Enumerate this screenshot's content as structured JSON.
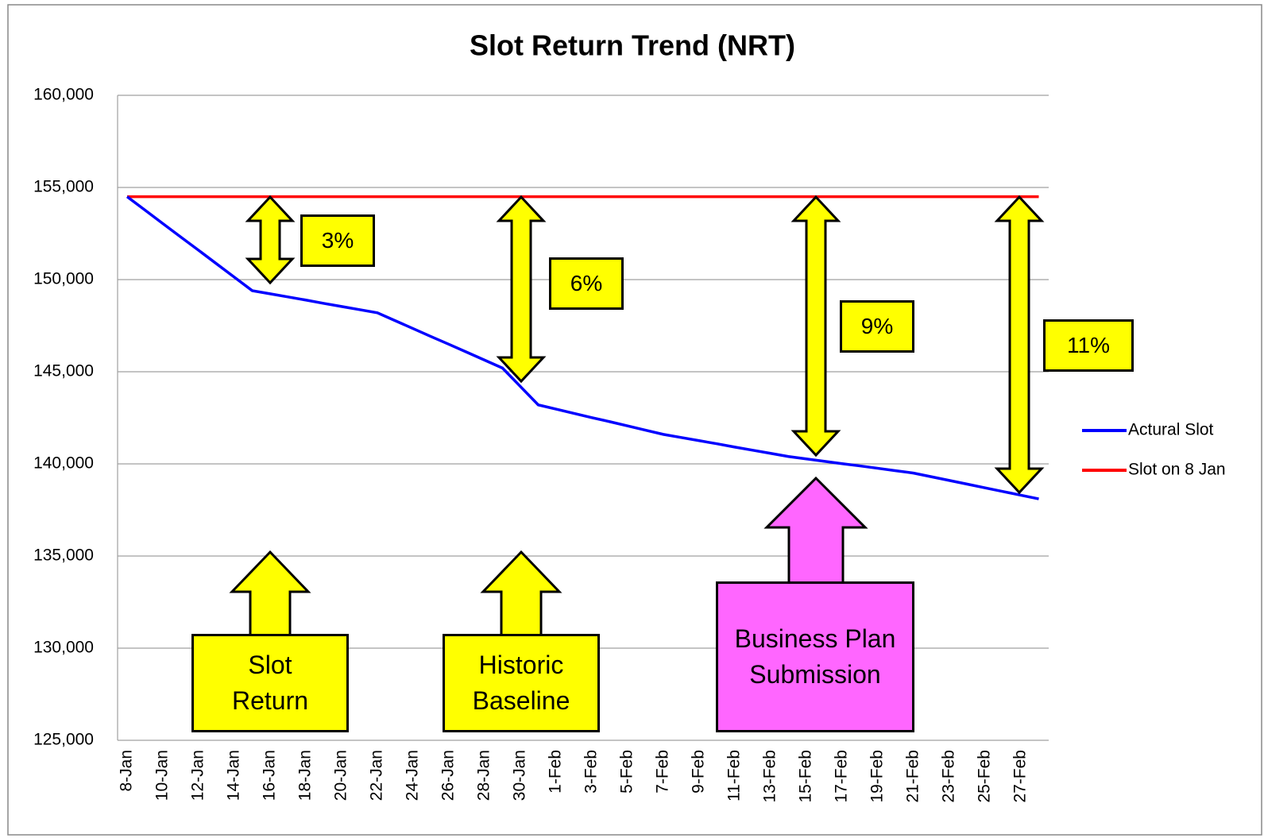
{
  "chart_data": {
    "type": "line",
    "title": "Slot Return Trend (NRT)",
    "categories": [
      "8-Jan",
      null,
      "10-Jan",
      null,
      "12-Jan",
      null,
      "14-Jan",
      null,
      "16-Jan",
      null,
      "18-Jan",
      null,
      "20-Jan",
      null,
      "22-Jan",
      null,
      "24-Jan",
      null,
      "26-Jan",
      null,
      "28-Jan",
      null,
      "30-Jan",
      null,
      "1-Feb",
      null,
      "3-Feb",
      null,
      "5-Feb",
      null,
      "7-Feb",
      null,
      "9-Feb",
      null,
      "11-Feb",
      null,
      "13-Feb",
      null,
      "15-Feb",
      null,
      "17-Feb",
      null,
      "19-Feb",
      null,
      "21-Feb",
      null,
      "23-Feb",
      null,
      "25-Feb",
      null,
      "27-Feb",
      null
    ],
    "series": [
      {
        "name": "Actural Slot",
        "color": "#0000ff",
        "values": [
          154500,
          153770,
          153040,
          152310,
          151590,
          150860,
          150130,
          149400,
          149230,
          149060,
          148890,
          148710,
          148540,
          148370,
          148200,
          147770,
          147340,
          146910,
          146490,
          146060,
          145630,
          145200,
          144200,
          143200,
          142970,
          142740,
          142510,
          142290,
          142060,
          141830,
          141600,
          141430,
          141260,
          141090,
          140910,
          140740,
          140570,
          140400,
          140270,
          140140,
          140010,
          139890,
          139760,
          139630,
          139500,
          139300,
          139100,
          138900,
          138700,
          138500,
          138300,
          138100
        ]
      },
      {
        "name": "Slot on 8 Jan",
        "color": "#ff0000",
        "values": [
          154500,
          154500,
          154500,
          154500,
          154500,
          154500,
          154500,
          154500,
          154500,
          154500,
          154500,
          154500,
          154500,
          154500,
          154500,
          154500,
          154500,
          154500,
          154500,
          154500,
          154500,
          154500,
          154500,
          154500,
          154500,
          154500,
          154500,
          154500,
          154500,
          154500,
          154500,
          154500,
          154500,
          154500,
          154500,
          154500,
          154500,
          154500,
          154500,
          154500,
          154500,
          154500,
          154500,
          154500,
          154500,
          154500,
          154500,
          154500,
          154500,
          154500,
          154500,
          154500
        ]
      }
    ],
    "ylim": [
      125000,
      160000
    ],
    "yticks": [
      {
        "value": 125000,
        "label": "125,000"
      },
      {
        "value": 130000,
        "label": "130,000"
      },
      {
        "value": 135000,
        "label": "135,000"
      },
      {
        "value": 140000,
        "label": "140,000"
      },
      {
        "value": 145000,
        "label": "145,000"
      },
      {
        "value": 150000,
        "label": "150,000"
      },
      {
        "value": 155000,
        "label": "155,000"
      },
      {
        "value": 160000,
        "label": "160,000"
      }
    ],
    "grid": true,
    "legend": "right",
    "gap_labels": [
      "3%",
      "6%",
      "9%",
      "11%"
    ],
    "callouts": [
      "Slot Return",
      "Historic Baseline",
      "Business Plan Submission"
    ]
  }
}
